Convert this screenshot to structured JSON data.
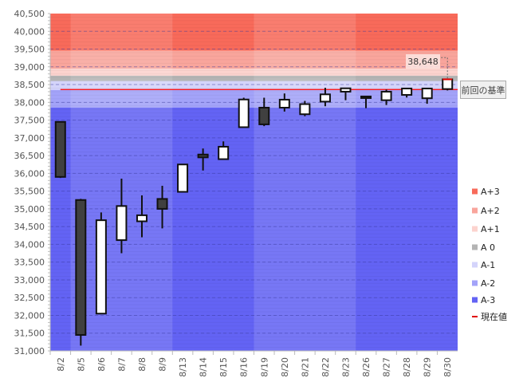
{
  "chart_data": {
    "type": "candlestick",
    "ylim": [
      31000,
      40500
    ],
    "ytick_step": 500,
    "grid": "horizontal dashed",
    "legend_placement": "right",
    "categories": [
      "8/2",
      "8/5",
      "8/6",
      "8/7",
      "8/8",
      "8/9",
      "8/13",
      "8/14",
      "8/15",
      "8/16",
      "8/19",
      "8/20",
      "8/21",
      "8/22",
      "8/23",
      "8/26",
      "8/27",
      "8/28",
      "8/29",
      "8/30"
    ],
    "ohlc": [
      [
        37450,
        37450,
        35870,
        35900
      ],
      [
        35250,
        35280,
        31150,
        31450
      ],
      [
        32050,
        34900,
        32050,
        34680
      ],
      [
        34120,
        35850,
        33750,
        35080
      ],
      [
        34650,
        35380,
        34200,
        34820
      ],
      [
        35280,
        35650,
        34450,
        35000
      ],
      [
        35480,
        36250,
        35480,
        36250
      ],
      [
        36530,
        36700,
        36080,
        36450
      ],
      [
        36400,
        36900,
        36400,
        36750
      ],
      [
        37300,
        38130,
        37300,
        38080
      ],
      [
        37850,
        38130,
        37330,
        37380
      ],
      [
        37850,
        38250,
        37740,
        38075
      ],
      [
        37665,
        38040,
        37610,
        37950
      ],
      [
        38020,
        38410,
        37890,
        38225
      ],
      [
        38300,
        38410,
        38060,
        38395
      ],
      [
        38165,
        38170,
        37835,
        38120
      ],
      [
        38060,
        38360,
        37925,
        38300
      ],
      [
        38210,
        38410,
        38135,
        38390
      ],
      [
        38115,
        38410,
        37960,
        38390
      ],
      [
        38375,
        38660,
        38335,
        38648
      ]
    ],
    "up_color": "#ffffff",
    "down_color": "#404040",
    "bands": [
      {
        "name": "A+3",
        "from": 39450,
        "to": 40500,
        "color": "#f86a5a"
      },
      {
        "name": "A+2",
        "from": 38950,
        "to": 39450,
        "color": "#f9a59c"
      },
      {
        "name": "A+1",
        "from": 38750,
        "to": 38950,
        "color": "#fcd3ce"
      },
      {
        "name": "A 0",
        "from": 38600,
        "to": 38750,
        "color": "#b4b4b4"
      },
      {
        "name": "A-1",
        "from": 38350,
        "to": 38600,
        "color": "#d4d4fb"
      },
      {
        "name": "A-2",
        "from": 37850,
        "to": 38350,
        "color": "#a3a3f9"
      },
      {
        "name": "A-3",
        "from": 31000,
        "to": 37850,
        "color": "#6363f4"
      }
    ],
    "reference_line": {
      "value": 38360,
      "label": "前回の基準",
      "color": "#ff0000"
    },
    "current_value_label": "38,648",
    "legend": [
      {
        "label": "A+3",
        "color": "#f86a5a"
      },
      {
        "label": "A+2",
        "color": "#f9a59c"
      },
      {
        "label": "A+1",
        "color": "#fcd3ce"
      },
      {
        "label": "A 0",
        "color": "#b4b4b4"
      },
      {
        "label": "A-1",
        "color": "#d4d4fb"
      },
      {
        "label": "A-2",
        "color": "#a3a3f9"
      },
      {
        "label": "A-3",
        "color": "#6363f4"
      },
      {
        "label": "現在値",
        "color": "#e00000",
        "line": true
      }
    ],
    "week_groups": [
      [
        0,
        0
      ],
      [
        1,
        5
      ],
      [
        6,
        9
      ],
      [
        10,
        14
      ],
      [
        15,
        19
      ]
    ]
  }
}
